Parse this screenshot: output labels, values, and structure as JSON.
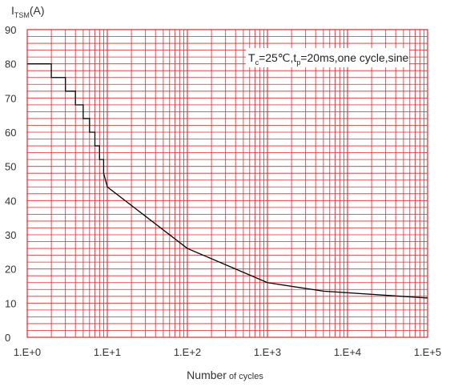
{
  "chart_data": {
    "type": "line",
    "x_scale": "log10",
    "xlim": [
      1,
      100000
    ],
    "ylim": [
      0,
      90
    ],
    "x_ticks": [
      {
        "value": 1,
        "label": "1.E+0"
      },
      {
        "value": 10,
        "label": "1.E+1"
      },
      {
        "value": 100,
        "label": "1.E+2"
      },
      {
        "value": 1000,
        "label": "1.E+3"
      },
      {
        "value": 10000,
        "label": "1.E+4"
      },
      {
        "value": 100000,
        "label": "1.E+5"
      }
    ],
    "y_ticks": [
      {
        "value": 0,
        "label": "0"
      },
      {
        "value": 10,
        "label": "10"
      },
      {
        "value": 20,
        "label": "20"
      },
      {
        "value": 30,
        "label": "30"
      },
      {
        "value": 40,
        "label": "40"
      },
      {
        "value": 50,
        "label": "50"
      },
      {
        "value": 60,
        "label": "60"
      },
      {
        "value": 70,
        "label": "70"
      },
      {
        "value": 80,
        "label": "80"
      },
      {
        "value": 90,
        "label": "90"
      }
    ],
    "ylabel": {
      "main": "I",
      "sub": "TSM",
      "suffix": "(A)"
    },
    "xlabel": {
      "main": "Number",
      "small": " of cycles"
    },
    "annotation": {
      "p1": "T",
      "p1_sub": "c",
      "p2": "=25℃,t",
      "p2_sub": "p",
      "p3": "=20ms,one cycle,sine",
      "position": "top-right"
    },
    "grid": {
      "major": true,
      "minor": true,
      "horizontal_step": 2,
      "color": "#e8242c"
    },
    "series": [
      {
        "color": "#000000",
        "x": [
          1,
          2,
          2,
          3,
          3,
          4,
          4,
          5,
          5,
          6,
          6,
          7,
          7,
          8,
          8,
          9,
          9,
          10,
          100,
          1000,
          5000,
          100000
        ],
        "y": [
          80,
          80,
          76,
          76,
          72,
          72,
          68,
          68,
          64,
          64,
          60,
          60,
          56,
          56,
          52,
          52,
          48,
          44,
          26,
          16,
          13.5,
          11.5
        ]
      }
    ]
  }
}
